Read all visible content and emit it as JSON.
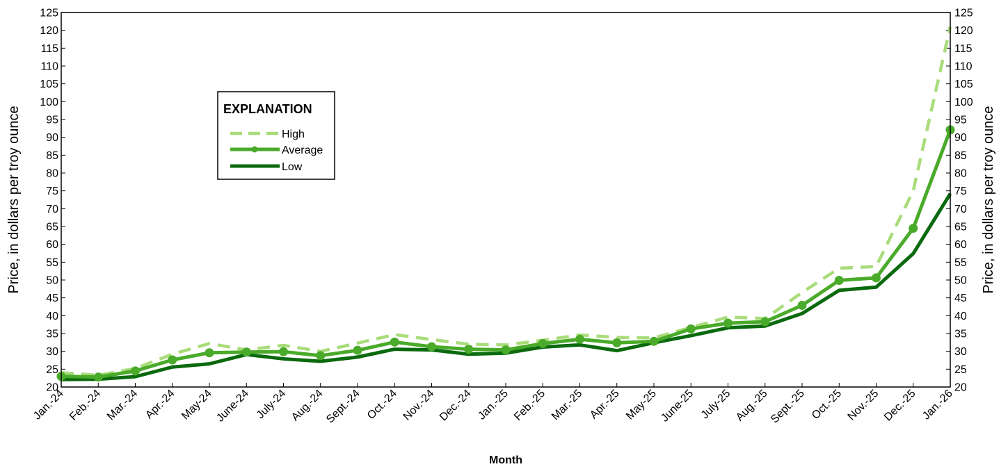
{
  "chart_data": {
    "type": "line",
    "xlabel": "Month",
    "ylabel_left": "Price, in dollars per troy ounce",
    "ylabel_right": "Price, in dollars per troy ounce",
    "ylim": [
      20,
      125
    ],
    "ytick_step": 5,
    "grid": false,
    "legend_title": "EXPLANATION",
    "legend_placement": "upper-left",
    "categories": [
      "Jan.-24",
      "Feb.-24",
      "Mar.-24",
      "Apr.-24",
      "May-24",
      "June-24",
      "July-24",
      "Aug.-24",
      "Sept.-24",
      "Oct.-24",
      "Nov.-24",
      "Dec.-24",
      "Jan.-25",
      "Feb.-25",
      "Mar.-25",
      "Apr.-25",
      "May-25",
      "June-25",
      "July-25",
      "Aug.-25",
      "Sept.-25",
      "Oct.-25",
      "Nov.-25",
      "Dec.-25",
      "Jan.-26"
    ],
    "series": [
      {
        "name": "High",
        "style": "dashed",
        "color": "#a9dc7a",
        "values": [
          24.0,
          23.3,
          25.2,
          29.2,
          32.2,
          30.4,
          31.7,
          30.0,
          32.3,
          34.7,
          33.3,
          32.0,
          31.8,
          33.1,
          34.6,
          33.9,
          33.8,
          36.7,
          39.6,
          39.2,
          46.5,
          53.3,
          53.8,
          75.0,
          121.0
        ]
      },
      {
        "name": "Average",
        "style": "solid-markers",
        "color": "#4aaa2a",
        "values": [
          23.0,
          22.8,
          24.5,
          27.6,
          29.6,
          29.8,
          29.9,
          28.8,
          30.3,
          32.6,
          31.3,
          30.6,
          30.4,
          32.2,
          33.4,
          32.4,
          32.8,
          36.3,
          37.9,
          38.3,
          42.9,
          49.9,
          50.6,
          64.5,
          92.1
        ]
      },
      {
        "name": "Low",
        "style": "solid",
        "color": "#0b6a0e",
        "values": [
          22.1,
          22.2,
          22.9,
          25.6,
          26.5,
          29.1,
          27.9,
          27.2,
          28.4,
          30.6,
          30.4,
          29.2,
          29.5,
          31.2,
          31.8,
          30.2,
          32.4,
          34.4,
          36.6,
          37.1,
          40.6,
          47.1,
          48.0,
          57.4,
          74.2
        ]
      }
    ]
  }
}
